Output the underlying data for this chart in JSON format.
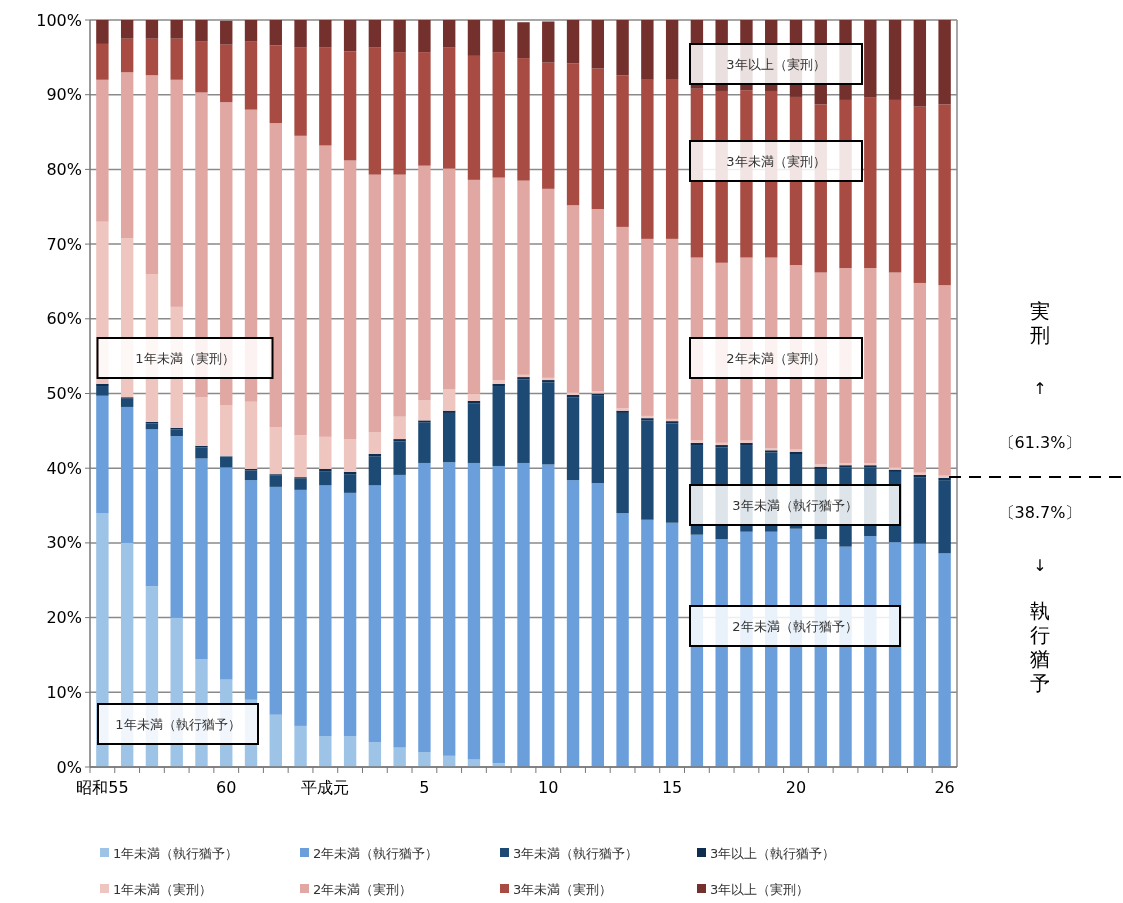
{
  "chart_data": {
    "type": "bar",
    "stacked": true,
    "categories": [
      "昭和55",
      null,
      null,
      null,
      null,
      "60",
      null,
      null,
      null,
      "平成元",
      null,
      null,
      null,
      "5",
      null,
      null,
      null,
      null,
      "10",
      null,
      null,
      null,
      null,
      "15",
      null,
      null,
      null,
      null,
      "20",
      null,
      null,
      null,
      null,
      null,
      "26"
    ],
    "series": [
      {
        "name": "1年未満（執行猶予）",
        "color": "#9dc3e6",
        "values": [
          34,
          30,
          24.2,
          20,
          14.4,
          11.7,
          9,
          7,
          5.5,
          4.1,
          4.1,
          3.3,
          2.6,
          2.0,
          1.5,
          1.0,
          0.5,
          null,
          null,
          0,
          0,
          0,
          0,
          0,
          0,
          0,
          0,
          0,
          0,
          0,
          0,
          0,
          0,
          0,
          0
        ]
      },
      {
        "name": "2年未満（執行猶予）",
        "color": "#6a9fdc",
        "values": [
          15.7,
          18.2,
          21.0,
          24.3,
          26.9,
          28.4,
          29.4,
          30.5,
          31.6,
          33.6,
          32.6,
          34.4,
          36.5,
          38.7,
          39.3,
          39.7,
          39.8,
          40.7,
          40.5,
          38.4,
          38.0,
          34.0,
          33.1,
          32.7,
          31.1,
          30.5,
          31.5,
          31.5,
          31.9,
          30.5,
          29.5,
          30.9,
          30.1,
          29.9,
          28.6
        ]
      },
      {
        "name": "3年未満（執行猶予）",
        "color": "#1d4a74",
        "values": [
          1.3,
          1.1,
          0.8,
          0.9,
          1.5,
          1.5,
          1.3,
          1.5,
          1.5,
          1.9,
          2.5,
          3.9,
          4.5,
          5.4,
          6.6,
          8.0,
          10.7,
          11.2,
          11.0,
          11.1,
          11.7,
          13.4,
          13.3,
          13.3,
          12.0,
          12.3,
          11.6,
          10.6,
          10.0,
          9.4,
          10.6,
          9.2,
          9.4,
          8.9,
          9.8
        ]
      },
      {
        "name": "3年以上（執行猶予）",
        "color": "#0f2d4f",
        "values": [
          0.3,
          0.2,
          0.2,
          0.2,
          0.2,
          null,
          0.2,
          0.2,
          0.2,
          0.3,
          0.3,
          0.3,
          0.3,
          0.3,
          0.3,
          0.3,
          0.3,
          0.3,
          0.3,
          0.3,
          0.3,
          0.3,
          0.3,
          0.3,
          0.3,
          0.3,
          0.3,
          0.3,
          0.3,
          0.3,
          0.3,
          0.3,
          0.3,
          0.3,
          0.3
        ]
      },
      {
        "name": "1年未満（実刑）",
        "color": "#efc5c0",
        "values": [
          21.7,
          21.3,
          19.8,
          16.2,
          6.5,
          6.8,
          9.0,
          6.3,
          5.6,
          4.3,
          4.4,
          2.9,
          3.0,
          2.7,
          2.9,
          1.0,
          0.5,
          0.3,
          0.3,
          0.3,
          0.3,
          0.3,
          0.3,
          0.3,
          0.3,
          0.3,
          0.3,
          0.3,
          0.3,
          0.3,
          0.3,
          0.3,
          0.3,
          0.3,
          0.3
        ]
      },
      {
        "name": "2年未満（実刑）",
        "color": "#e0a7a3",
        "values": [
          19,
          22.2,
          26.6,
          30.4,
          40.8,
          40.6,
          39.1,
          40.7,
          40.1,
          39.0,
          37.3,
          34.5,
          32.4,
          31.4,
          29.5,
          28.6,
          27.1,
          26.0,
          25.3,
          25.1,
          24.4,
          24.3,
          23.7,
          24.1,
          24.5,
          24.1,
          24.5,
          25.5,
          24.7,
          25.7,
          26.1,
          26.1,
          26.1,
          25.4,
          25.5
        ]
      },
      {
        "name": "3年未満（実刑）",
        "color": "#a84b43",
        "values": [
          4.8,
          4.5,
          4.9,
          5.5,
          6.8,
          7.7,
          9.1,
          10.4,
          11.8,
          13.1,
          14.6,
          17.0,
          16.4,
          15.2,
          16.2,
          16.6,
          16.8,
          16.4,
          16.9,
          19.0,
          18.8,
          20.3,
          21.3,
          21.3,
          22.6,
          23.0,
          22.4,
          22.3,
          22.5,
          22.5,
          22.5,
          22.8,
          23.1,
          23.6,
          24.2
        ]
      },
      {
        "name": "3年以上（実刑）",
        "color": "#74302d",
        "values": [
          3.2,
          2.5,
          2.5,
          2.5,
          2.9,
          3.2,
          2.9,
          3.4,
          3.7,
          3.7,
          4.2,
          3.7,
          4.3,
          4.3,
          3.7,
          4.8,
          4.3,
          4.8,
          5.5,
          5.8,
          6.5,
          7.4,
          8.0,
          8.0,
          9.2,
          9.5,
          9.4,
          9.5,
          10.3,
          11.3,
          10.7,
          10.4,
          10.7,
          11.6,
          11.3
        ]
      }
    ],
    "ylim": [
      0,
      100
    ],
    "yticks": [
      {
        "value": 0,
        "label": "0%"
      },
      {
        "value": 10,
        "label": "10%"
      },
      {
        "value": 20,
        "label": "20%"
      },
      {
        "value": 30,
        "label": "30%"
      },
      {
        "value": 40,
        "label": "40%"
      },
      {
        "value": 50,
        "label": "50%"
      },
      {
        "value": 60,
        "label": "60%"
      },
      {
        "value": 70,
        "label": "70%"
      },
      {
        "value": 80,
        "label": "80%"
      },
      {
        "value": 90,
        "label": "90%"
      },
      {
        "value": 100,
        "label": "100%"
      }
    ],
    "grid": "y",
    "legend": "bottom",
    "annotations": [
      "1年未満（執行猶予）",
      "1年未満（実刑）",
      "2年未満（執行猶予）",
      "3年未満（執行猶予）",
      "2年未満（実刑）",
      "3年未満（実刑）",
      "3年以上（実刑）",
      "実刑",
      "↑",
      "〔61.3%〕",
      "〔38.7%〕",
      "↓",
      "執行猶予"
    ]
  }
}
